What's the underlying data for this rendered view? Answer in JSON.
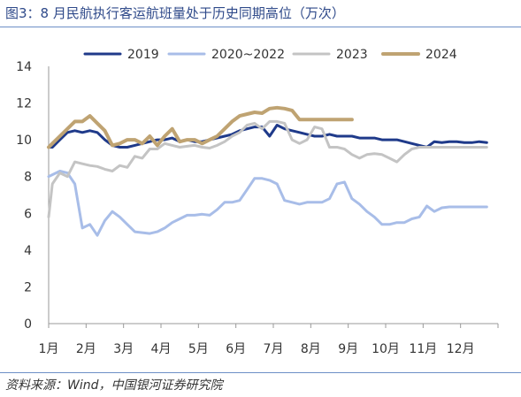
{
  "figure": {
    "title": "图3：8 月民航执行客运航班量处于历史同期高位（万次）",
    "source": "资料来源：Wind，中国银河证券研究院"
  },
  "colors": {
    "s2019": "#1f3a8a",
    "s2020": "#a8bde8",
    "s2023": "#c4c4c4",
    "s2024": "#bfa372",
    "axis": "#9a9a9a",
    "rule": "#6d8fc7"
  },
  "chart_data": {
    "type": "line",
    "categories": [
      "1月",
      "2月",
      "3月",
      "4月",
      "5月",
      "6月",
      "7月",
      "8月",
      "9月",
      "10月",
      "11月",
      "12月"
    ],
    "ylim": [
      0,
      14
    ],
    "yticks": [
      0,
      2,
      4,
      6,
      8,
      10,
      12,
      14
    ],
    "grid": false,
    "legend": "top",
    "series": [
      {
        "name": "2019",
        "color": "#1f3a8a",
        "width": 3,
        "x": [
          1.0,
          1.1,
          1.3,
          1.5,
          1.7,
          1.9,
          2.1,
          2.3,
          2.5,
          2.7,
          2.9,
          3.1,
          3.3,
          3.5,
          3.7,
          3.9,
          4.1,
          4.3,
          4.5,
          4.7,
          4.9,
          5.1,
          5.3,
          5.5,
          5.7,
          5.9,
          6.1,
          6.3,
          6.5,
          6.7,
          6.9,
          7.1,
          7.3,
          7.5,
          7.7,
          7.9,
          8.1,
          8.3,
          8.5,
          8.7,
          8.9,
          9.1,
          9.3,
          9.5,
          9.7,
          9.9,
          10.1,
          10.3,
          10.5,
          10.7,
          10.9,
          11.1,
          11.3,
          11.5,
          11.7,
          11.9,
          12.1,
          12.3,
          12.5,
          12.7
        ],
        "y": [
          9.6,
          9.6,
          10.0,
          10.4,
          10.5,
          10.4,
          10.5,
          10.4,
          10.0,
          9.7,
          9.6,
          9.6,
          9.7,
          9.8,
          9.9,
          10.0,
          10.0,
          10.1,
          9.9,
          10.0,
          9.9,
          9.9,
          10.0,
          10.1,
          10.2,
          10.3,
          10.5,
          10.6,
          10.7,
          10.7,
          10.2,
          10.8,
          10.6,
          10.5,
          10.4,
          10.3,
          10.2,
          10.2,
          10.3,
          10.2,
          10.2,
          10.2,
          10.1,
          10.1,
          10.1,
          10.0,
          10.0,
          10.0,
          9.9,
          9.8,
          9.7,
          9.6,
          9.9,
          9.85,
          9.9,
          9.9,
          9.85,
          9.85,
          9.9,
          9.85
        ]
      },
      {
        "name": "2020~2022",
        "color": "#a8bde8",
        "width": 3,
        "x": [
          1.0,
          1.1,
          1.3,
          1.5,
          1.7,
          1.9,
          2.1,
          2.3,
          2.5,
          2.7,
          2.9,
          3.1,
          3.3,
          3.5,
          3.7,
          3.9,
          4.1,
          4.3,
          4.5,
          4.7,
          4.9,
          5.1,
          5.3,
          5.5,
          5.7,
          5.9,
          6.1,
          6.3,
          6.5,
          6.7,
          6.9,
          7.1,
          7.3,
          7.5,
          7.7,
          7.9,
          8.1,
          8.3,
          8.5,
          8.7,
          8.9,
          9.1,
          9.3,
          9.5,
          9.7,
          9.9,
          10.1,
          10.3,
          10.5,
          10.7,
          10.9,
          11.1,
          11.3,
          11.5,
          11.7,
          11.9,
          12.1,
          12.3,
          12.5,
          12.7
        ],
        "y": [
          8.0,
          8.1,
          8.3,
          8.2,
          7.6,
          5.2,
          5.4,
          4.8,
          5.6,
          6.1,
          5.8,
          5.4,
          5.0,
          4.95,
          4.9,
          5.0,
          5.2,
          5.5,
          5.7,
          5.9,
          5.9,
          5.95,
          5.9,
          6.2,
          6.6,
          6.6,
          6.7,
          7.3,
          7.9,
          7.9,
          7.8,
          7.6,
          6.7,
          6.6,
          6.5,
          6.6,
          6.6,
          6.6,
          6.8,
          7.6,
          7.7,
          6.8,
          6.5,
          6.1,
          5.8,
          5.4,
          5.4,
          5.5,
          5.5,
          5.7,
          5.8,
          6.4,
          6.1,
          6.3,
          6.35,
          6.35,
          6.35,
          6.35,
          6.35,
          6.35
        ]
      },
      {
        "name": "2023",
        "color": "#c4c4c4",
        "width": 3,
        "x": [
          1.0,
          1.1,
          1.3,
          1.5,
          1.7,
          1.9,
          2.1,
          2.3,
          2.5,
          2.7,
          2.9,
          3.1,
          3.3,
          3.5,
          3.7,
          3.9,
          4.1,
          4.3,
          4.5,
          4.7,
          4.9,
          5.1,
          5.3,
          5.5,
          5.7,
          5.9,
          6.1,
          6.3,
          6.5,
          6.7,
          6.9,
          7.1,
          7.3,
          7.5,
          7.7,
          7.9,
          8.1,
          8.3,
          8.5,
          8.7,
          8.9,
          9.1,
          9.3,
          9.5,
          9.7,
          9.9,
          10.1,
          10.3,
          10.5,
          10.7,
          10.9,
          11.1,
          11.3,
          11.5,
          11.7,
          11.9,
          12.1,
          12.3,
          12.5,
          12.7
        ],
        "y": [
          5.8,
          7.6,
          8.2,
          8.0,
          8.8,
          8.7,
          8.6,
          8.55,
          8.4,
          8.3,
          8.6,
          8.5,
          9.1,
          9.0,
          9.5,
          9.5,
          9.8,
          9.7,
          9.6,
          9.65,
          9.7,
          9.6,
          9.55,
          9.7,
          9.9,
          10.2,
          10.4,
          10.8,
          10.9,
          10.6,
          11.0,
          11.0,
          10.9,
          10.0,
          9.8,
          10.0,
          10.7,
          10.6,
          9.6,
          9.6,
          9.5,
          9.2,
          9.0,
          9.2,
          9.25,
          9.2,
          9.0,
          8.8,
          9.2,
          9.5,
          9.6,
          9.6,
          9.6,
          9.6,
          9.6,
          9.6,
          9.6,
          9.6,
          9.6,
          9.6
        ]
      },
      {
        "name": "2024",
        "color": "#bfa372",
        "width": 4,
        "x": [
          1.0,
          1.1,
          1.3,
          1.5,
          1.7,
          1.9,
          2.1,
          2.3,
          2.5,
          2.7,
          2.9,
          3.1,
          3.3,
          3.5,
          3.7,
          3.9,
          4.1,
          4.3,
          4.5,
          4.7,
          4.9,
          5.1,
          5.3,
          5.5,
          5.7,
          5.9,
          6.1,
          6.3,
          6.5,
          6.7,
          6.9,
          7.1,
          7.3,
          7.5,
          7.7,
          7.9,
          8.1,
          8.3,
          8.5,
          8.7,
          8.9,
          9.1
        ],
        "y": [
          9.6,
          9.8,
          10.2,
          10.6,
          11.0,
          11.0,
          11.3,
          10.9,
          10.5,
          9.7,
          9.8,
          10.0,
          10.0,
          9.8,
          10.2,
          9.7,
          10.2,
          10.6,
          9.9,
          10.0,
          10.0,
          9.8,
          10.0,
          10.2,
          10.6,
          11.0,
          11.3,
          11.4,
          11.5,
          11.45,
          11.7,
          11.75,
          11.7,
          11.6,
          11.1,
          11.1,
          11.1,
          11.1,
          11.1,
          11.1,
          11.1,
          11.1
        ]
      }
    ]
  }
}
